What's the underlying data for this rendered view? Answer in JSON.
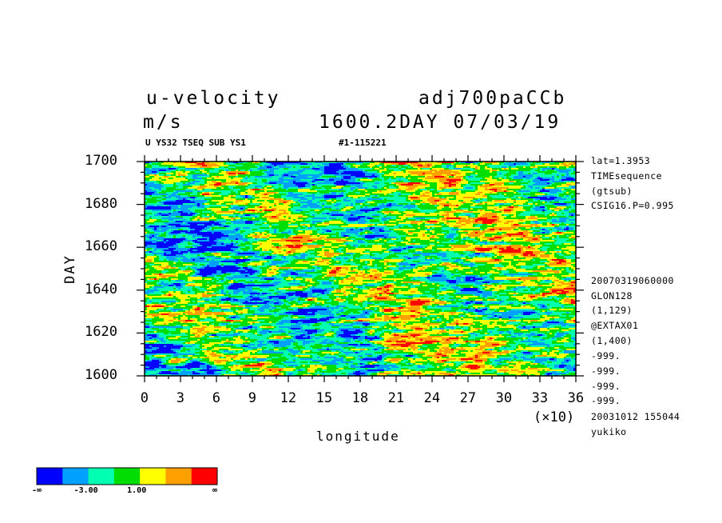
{
  "header": {
    "variable": "u-velocity",
    "dataset": "adj700paCCb",
    "units": "m/s",
    "time": "1600.2DAY 07/03/19",
    "subtitle_left": "U YS32 TSEQ SUB YS1",
    "subtitle_right": "#1-115221"
  },
  "side_info": [
    "lat=1.3953",
    "TIMEsequence",
    "(gtsub)",
    "CSIG16.P=0.995",
    "20070319060000",
    "GLON128",
    "(1,129)",
    "@EXTAX01",
    "(1,400)",
    "-999.",
    "-999.",
    "-999.",
    "-999.",
    "20031012 155044",
    "yukiko"
  ],
  "chart_data": {
    "type": "heatmap",
    "title": "u-velocity",
    "xlabel": "longitude",
    "x_multiplier": "(×10)",
    "ylabel": "DAY",
    "xlim": [
      0,
      36
    ],
    "ylim": [
      1600,
      1700
    ],
    "x_ticks": [
      "0",
      "3",
      "6",
      "9",
      "12",
      "15",
      "18",
      "21",
      "24",
      "27",
      "30",
      "33",
      "36"
    ],
    "y_ticks": [
      "1600",
      "1620",
      "1640",
      "1660",
      "1680",
      "1700"
    ],
    "colorbar": {
      "colors": [
        "#0000ff",
        "#00a0ff",
        "#00ffb0",
        "#00dd00",
        "#ffff00",
        "#ffa000",
        "#ff0000"
      ],
      "labels": [
        "-∞",
        "-3.00",
        "1.00",
        "∞"
      ]
    }
  }
}
